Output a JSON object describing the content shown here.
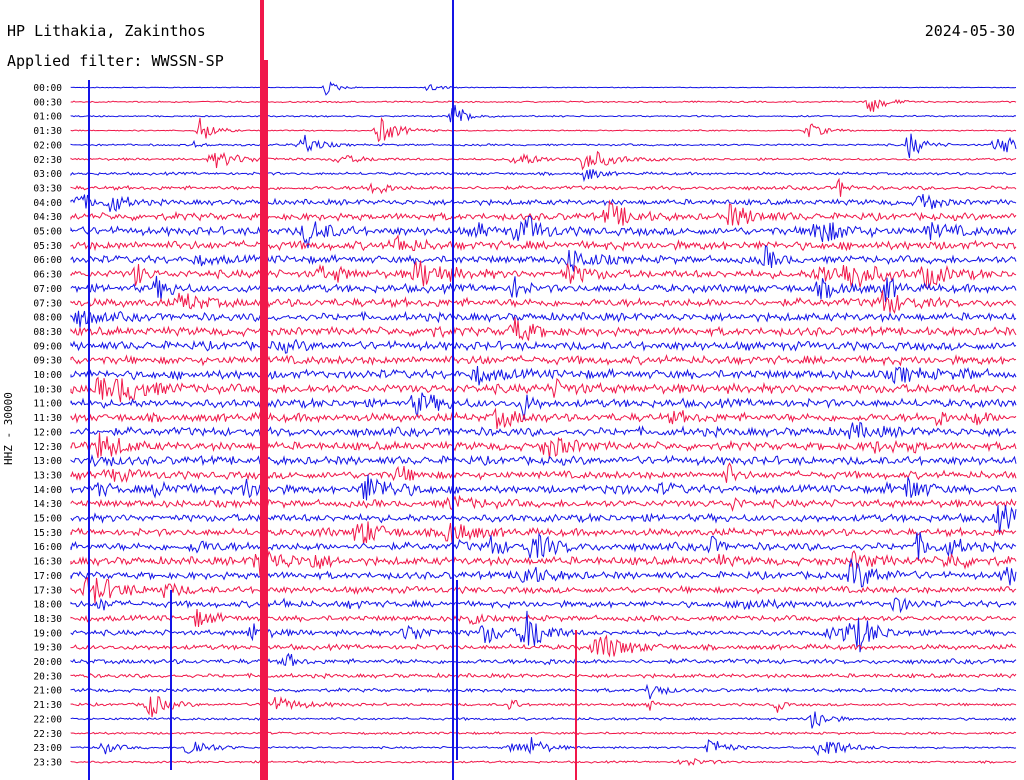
{
  "header": {
    "station": "HP Lithakia, Zakinthos",
    "filter": "Applied filter: WWSSN-SP",
    "date": "2024-05-30"
  },
  "colors": {
    "blue": "#1414e6",
    "red": "#f0184a"
  },
  "chart_data": {
    "type": "line",
    "subtype": "helicorder",
    "ylabel": "HHZ - 30000",
    "row_colors": [
      "blue",
      "red"
    ],
    "rows": [
      "00:00",
      "00:30",
      "01:00",
      "01:30",
      "02:00",
      "02:30",
      "03:00",
      "03:30",
      "04:00",
      "04:30",
      "05:00",
      "05:30",
      "06:00",
      "06:30",
      "07:00",
      "07:30",
      "08:00",
      "08:30",
      "09:00",
      "09:30",
      "10:00",
      "10:30",
      "11:00",
      "11:30",
      "12:00",
      "12:30",
      "13:00",
      "13:30",
      "14:00",
      "14:30",
      "15:00",
      "15:30",
      "16:00",
      "16:30",
      "17:00",
      "17:30",
      "18:00",
      "18:30",
      "19:00",
      "19:30",
      "20:00",
      "20:30",
      "21:00",
      "21:30",
      "22:00",
      "22:30",
      "23:00",
      "23:30"
    ],
    "noise_level": [
      0.3,
      0.6,
      0.6,
      0.5,
      0.8,
      0.9,
      1.1,
      1.5,
      2.2,
      2.8,
      3.2,
      3.4,
      3.0,
      3.1,
      3.2,
      3.3,
      3.2,
      3.3,
      3.4,
      3.3,
      3.5,
      3.6,
      3.3,
      3.3,
      3.4,
      3.2,
      3.3,
      3.0,
      3.0,
      2.9,
      3.0,
      2.9,
      3.1,
      3.2,
      2.8,
      2.6,
      2.5,
      2.2,
      2.1,
      2.0,
      1.9,
      1.6,
      1.4,
      1.1,
      1.0,
      0.9,
      0.8,
      0.8
    ]
  }
}
